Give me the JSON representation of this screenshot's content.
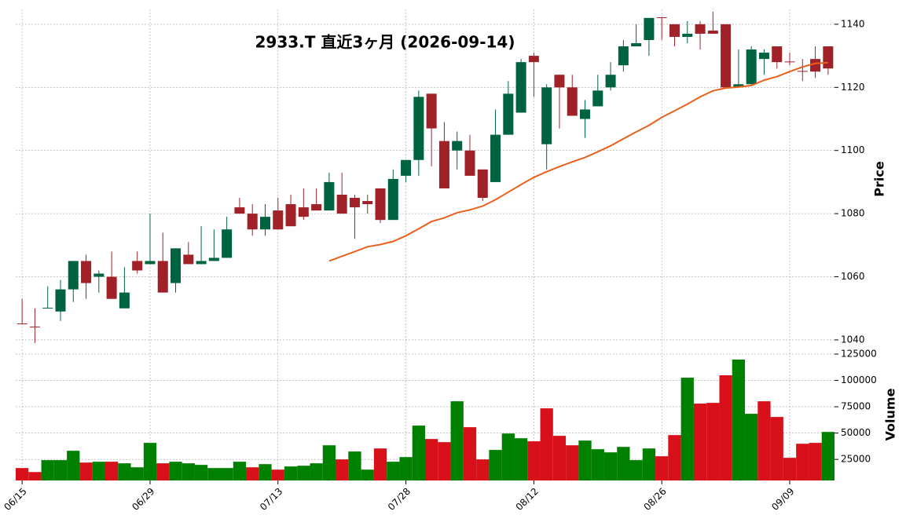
{
  "chart_data": {
    "type": "candlestick",
    "title": "2933.T  直近3ヶ月  (2026-09-14)",
    "categories": [
      "06/15",
      null,
      null,
      null,
      null,
      null,
      null,
      null,
      null,
      null,
      "06/29",
      null,
      null,
      null,
      null,
      null,
      null,
      null,
      null,
      null,
      "07/13",
      null,
      null,
      null,
      null,
      null,
      null,
      null,
      null,
      null,
      "07/28",
      null,
      null,
      null,
      null,
      null,
      null,
      null,
      null,
      null,
      "08/12",
      null,
      null,
      null,
      null,
      null,
      null,
      null,
      null,
      null,
      "08/26",
      null,
      null,
      null,
      null,
      null,
      null,
      null,
      null,
      null,
      "09/09",
      null,
      null,
      null
    ],
    "open": [
      1045.2,
      1044.2,
      1050,
      1049,
      1056,
      1065,
      1060,
      1060,
      1050,
      1065,
      1064,
      1065,
      1058,
      1067,
      1064,
      1065,
      1066,
      1082,
      1080,
      1075,
      1081,
      1083,
      1082,
      1083,
      1081,
      1086,
      1085,
      1084,
      1088,
      1078,
      1092,
      1097,
      1118,
      1103,
      1100,
      1100,
      1094,
      1090,
      1105,
      1112,
      1130,
      1102,
      1124,
      1120,
      1110,
      1114,
      1120,
      1127,
      1133,
      1135,
      1142.2,
      1140,
      1136,
      1140,
      1138,
      1140,
      1120,
      1121,
      1129,
      1133,
      1128.2,
      1125.2,
      1129,
      1133
    ],
    "high": [
      1053,
      1050,
      1057,
      1059,
      1065,
      1067,
      1062,
      1068,
      1063,
      1068,
      1080,
      1074,
      1069,
      1071,
      1076,
      1075,
      1079,
      1085,
      1083,
      1083,
      1085,
      1086,
      1088,
      1088,
      1093,
      1093,
      1086,
      1086,
      1088,
      1094,
      1097,
      1119,
      1118,
      1109,
      1106,
      1105,
      1094,
      1113,
      1122,
      1129,
      1131,
      1121,
      1124,
      1124,
      1116,
      1124,
      1128,
      1135,
      1140,
      1142,
      1142.2,
      1140,
      1141,
      1141,
      1144,
      1140,
      1132,
      1133,
      1132,
      1133,
      1131,
      1129,
      1133,
      1133
    ],
    "low": [
      1045,
      1039,
      1050,
      1046,
      1052,
      1053,
      1055,
      1053,
      1050,
      1061,
      1064,
      1055,
      1055,
      1064,
      1064,
      1065,
      1066,
      1080,
      1073,
      1073,
      1075,
      1076,
      1078,
      1081,
      1081,
      1080,
      1072,
      1080,
      1077,
      1078,
      1090,
      1092,
      1095,
      1088,
      1094,
      1092,
      1084,
      1090,
      1105,
      1112,
      1117,
      1094,
      1107,
      1111,
      1104,
      1114,
      1119,
      1125,
      1133,
      1130,
      1135,
      1133,
      1134,
      1132,
      1137,
      1120,
      1120,
      1121,
      1124,
      1126,
      1127,
      1122,
      1123,
      1124
    ],
    "close": [
      1045,
      1044,
      1050.2,
      1056,
      1065,
      1058,
      1061,
      1053,
      1055,
      1062,
      1065,
      1055,
      1069,
      1064,
      1065,
      1066,
      1075,
      1080,
      1075,
      1079,
      1075,
      1076,
      1079,
      1081,
      1090,
      1080,
      1082,
      1083,
      1078,
      1091,
      1097,
      1117,
      1107,
      1088,
      1103,
      1092,
      1085,
      1105,
      1118,
      1128,
      1128,
      1120,
      1120,
      1111,
      1113,
      1119,
      1124,
      1133,
      1134,
      1142,
      1142,
      1136,
      1137,
      1137,
      1137,
      1120,
      1121,
      1132,
      1131,
      1128,
      1128,
      1125,
      1125,
      1126
    ],
    "ma": {
      "values": [
        null,
        null,
        null,
        null,
        null,
        null,
        null,
        null,
        null,
        null,
        null,
        null,
        null,
        null,
        null,
        null,
        null,
        null,
        null,
        null,
        null,
        null,
        null,
        null,
        1065,
        1066.5,
        1068,
        1069.5,
        1070.2,
        1071.2,
        1073,
        1075.2,
        1077.5,
        1078.7,
        1080.3,
        1081.2,
        1082.4,
        1084.4,
        1086.8,
        1089.2,
        1091.5,
        1093.3,
        1094.9,
        1096.4,
        1097.8,
        1099.6,
        1101.5,
        1103.7,
        1105.9,
        1108,
        1110.5,
        1112.6,
        1114.7,
        1117,
        1118.9,
        1119.8,
        1120.1,
        1120.6,
        1122.3,
        1123.4,
        1125,
        1126.5,
        1127.6,
        1127.8
      ]
    },
    "volume": {
      "values": [
        16800,
        13000,
        24300,
        24300,
        33200,
        22000,
        22800,
        22800,
        21300,
        17500,
        40700,
        21300,
        22800,
        21300,
        19800,
        16800,
        16800,
        22800,
        17500,
        20500,
        15300,
        18300,
        19000,
        21300,
        38400,
        25000,
        32500,
        15300,
        35400,
        22800,
        27200,
        57100,
        44400,
        41400,
        80200,
        55600,
        25000,
        34000,
        49600,
        45100,
        42200,
        73500,
        47400,
        38400,
        42900,
        34700,
        31700,
        36900,
        24300,
        35400,
        28000,
        48100,
        102600,
        78000,
        78700,
        104900,
        119800,
        68300,
        80200,
        65300,
        26500,
        39900,
        40700,
        51100
      ],
      "direction": [
        "down",
        "down",
        "up",
        "up",
        "up",
        "down",
        "up",
        "down",
        "up",
        "up",
        "up",
        "down",
        "up",
        "up",
        "up",
        "up",
        "up",
        "up",
        "down",
        "up",
        "down",
        "up",
        "up",
        "up",
        "up",
        "down",
        "up",
        "up",
        "down",
        "up",
        "up",
        "up",
        "down",
        "down",
        "up",
        "down",
        "down",
        "up",
        "up",
        "up",
        "down",
        "down",
        "down",
        "down",
        "up",
        "up",
        "up",
        "up",
        "up",
        "up",
        "down",
        "down",
        "up",
        "down",
        "down",
        "down",
        "up",
        "up",
        "down",
        "down",
        "down",
        "down",
        "down",
        "up"
      ]
    },
    "ylim": [
      1037.5,
      1144.7
    ],
    "yticks": [
      1040,
      1060,
      1080,
      1100,
      1120,
      1140
    ],
    "ylabel": "Price",
    "volume_ylim": [
      5000,
      129500
    ],
    "volume_yticks": [
      25000,
      50000,
      75000,
      100000,
      125000
    ],
    "volume_ylabel": "Volume",
    "colors": {
      "up": "#006340",
      "down": "#a02128",
      "volume_up": "#008000",
      "volume_down": "#d8101a",
      "ma": "#e8601c"
    },
    "grid": true
  }
}
